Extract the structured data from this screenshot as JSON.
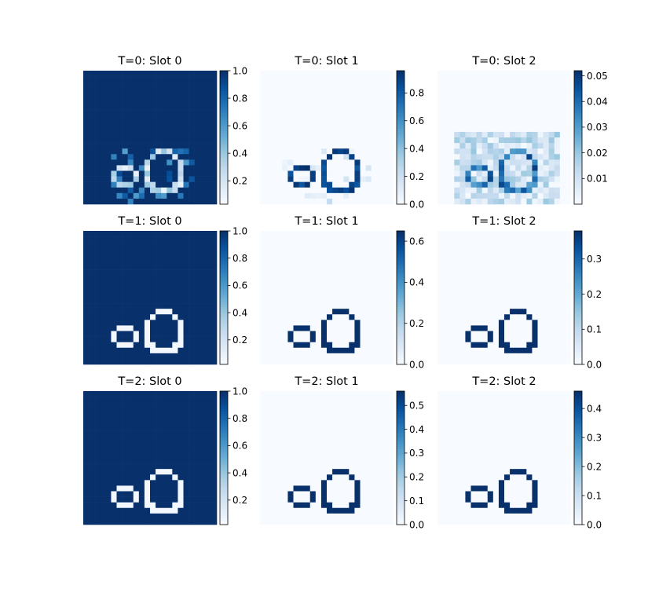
{
  "figure": {
    "background": "#ffffff",
    "colormap": "Blues",
    "colormap_low": "#f7fbff",
    "colormap_high": "#08306b",
    "grid_size": 24,
    "rows": 3,
    "cols": 3
  },
  "chart_data": [
    {
      "type": "heatmap",
      "title": "T=0: Slot 0",
      "slot": "interior",
      "t": 0,
      "vmin": 0.03,
      "vmax": 1.0,
      "ticks": [
        "0.2",
        "0.4",
        "0.6",
        "0.8",
        "1.0"
      ],
      "tick_values": [
        0.2,
        0.4,
        0.6,
        0.8,
        1.0
      ]
    },
    {
      "type": "heatmap",
      "title": "T=0: Slot 1",
      "slot": "outline",
      "t": 0,
      "vmin": 0.0,
      "vmax": 0.96,
      "ticks": [
        "0.0",
        "0.2",
        "0.4",
        "0.6",
        "0.8"
      ],
      "tick_values": [
        0.0,
        0.2,
        0.4,
        0.6,
        0.8
      ]
    },
    {
      "type": "heatmap",
      "title": "T=0: Slot 2",
      "slot": "outline",
      "t": 0,
      "vmin": 0.0,
      "vmax": 0.052,
      "ticks": [
        "0.01",
        "0.02",
        "0.03",
        "0.04",
        "0.05"
      ],
      "tick_values": [
        0.01,
        0.02,
        0.03,
        0.04,
        0.05
      ]
    },
    {
      "type": "heatmap",
      "title": "T=1: Slot 0",
      "slot": "interior",
      "t": 1,
      "vmin": 0.02,
      "vmax": 1.0,
      "ticks": [
        "0.2",
        "0.4",
        "0.6",
        "0.8",
        "1.0"
      ],
      "tick_values": [
        0.2,
        0.4,
        0.6,
        0.8,
        1.0
      ]
    },
    {
      "type": "heatmap",
      "title": "T=1: Slot 1",
      "slot": "outline",
      "t": 1,
      "vmin": 0.0,
      "vmax": 0.65,
      "ticks": [
        "0.0",
        "0.2",
        "0.4",
        "0.6"
      ],
      "tick_values": [
        0.0,
        0.2,
        0.4,
        0.6
      ]
    },
    {
      "type": "heatmap",
      "title": "T=1: Slot 2",
      "slot": "outline",
      "t": 1,
      "vmin": 0.0,
      "vmax": 0.38,
      "ticks": [
        "0.0",
        "0.1",
        "0.2",
        "0.3"
      ],
      "tick_values": [
        0.0,
        0.1,
        0.2,
        0.3
      ]
    },
    {
      "type": "heatmap",
      "title": "T=2: Slot 0",
      "slot": "interior",
      "t": 2,
      "vmin": 0.02,
      "vmax": 1.0,
      "ticks": [
        "0.2",
        "0.4",
        "0.6",
        "0.8",
        "1.0"
      ],
      "tick_values": [
        0.2,
        0.4,
        0.6,
        0.8,
        1.0
      ]
    },
    {
      "type": "heatmap",
      "title": "T=2: Slot 1",
      "slot": "outline",
      "t": 2,
      "vmin": 0.0,
      "vmax": 0.56,
      "ticks": [
        "0.0",
        "0.1",
        "0.2",
        "0.3",
        "0.4",
        "0.5"
      ],
      "tick_values": [
        0.0,
        0.1,
        0.2,
        0.3,
        0.4,
        0.5
      ]
    },
    {
      "type": "heatmap",
      "title": "T=2: Slot 2",
      "slot": "outline",
      "t": 2,
      "vmin": 0.0,
      "vmax": 0.46,
      "ticks": [
        "0.0",
        "0.1",
        "0.2",
        "0.3",
        "0.4"
      ],
      "tick_values": [
        0.0,
        0.1,
        0.2,
        0.3,
        0.4
      ]
    }
  ]
}
